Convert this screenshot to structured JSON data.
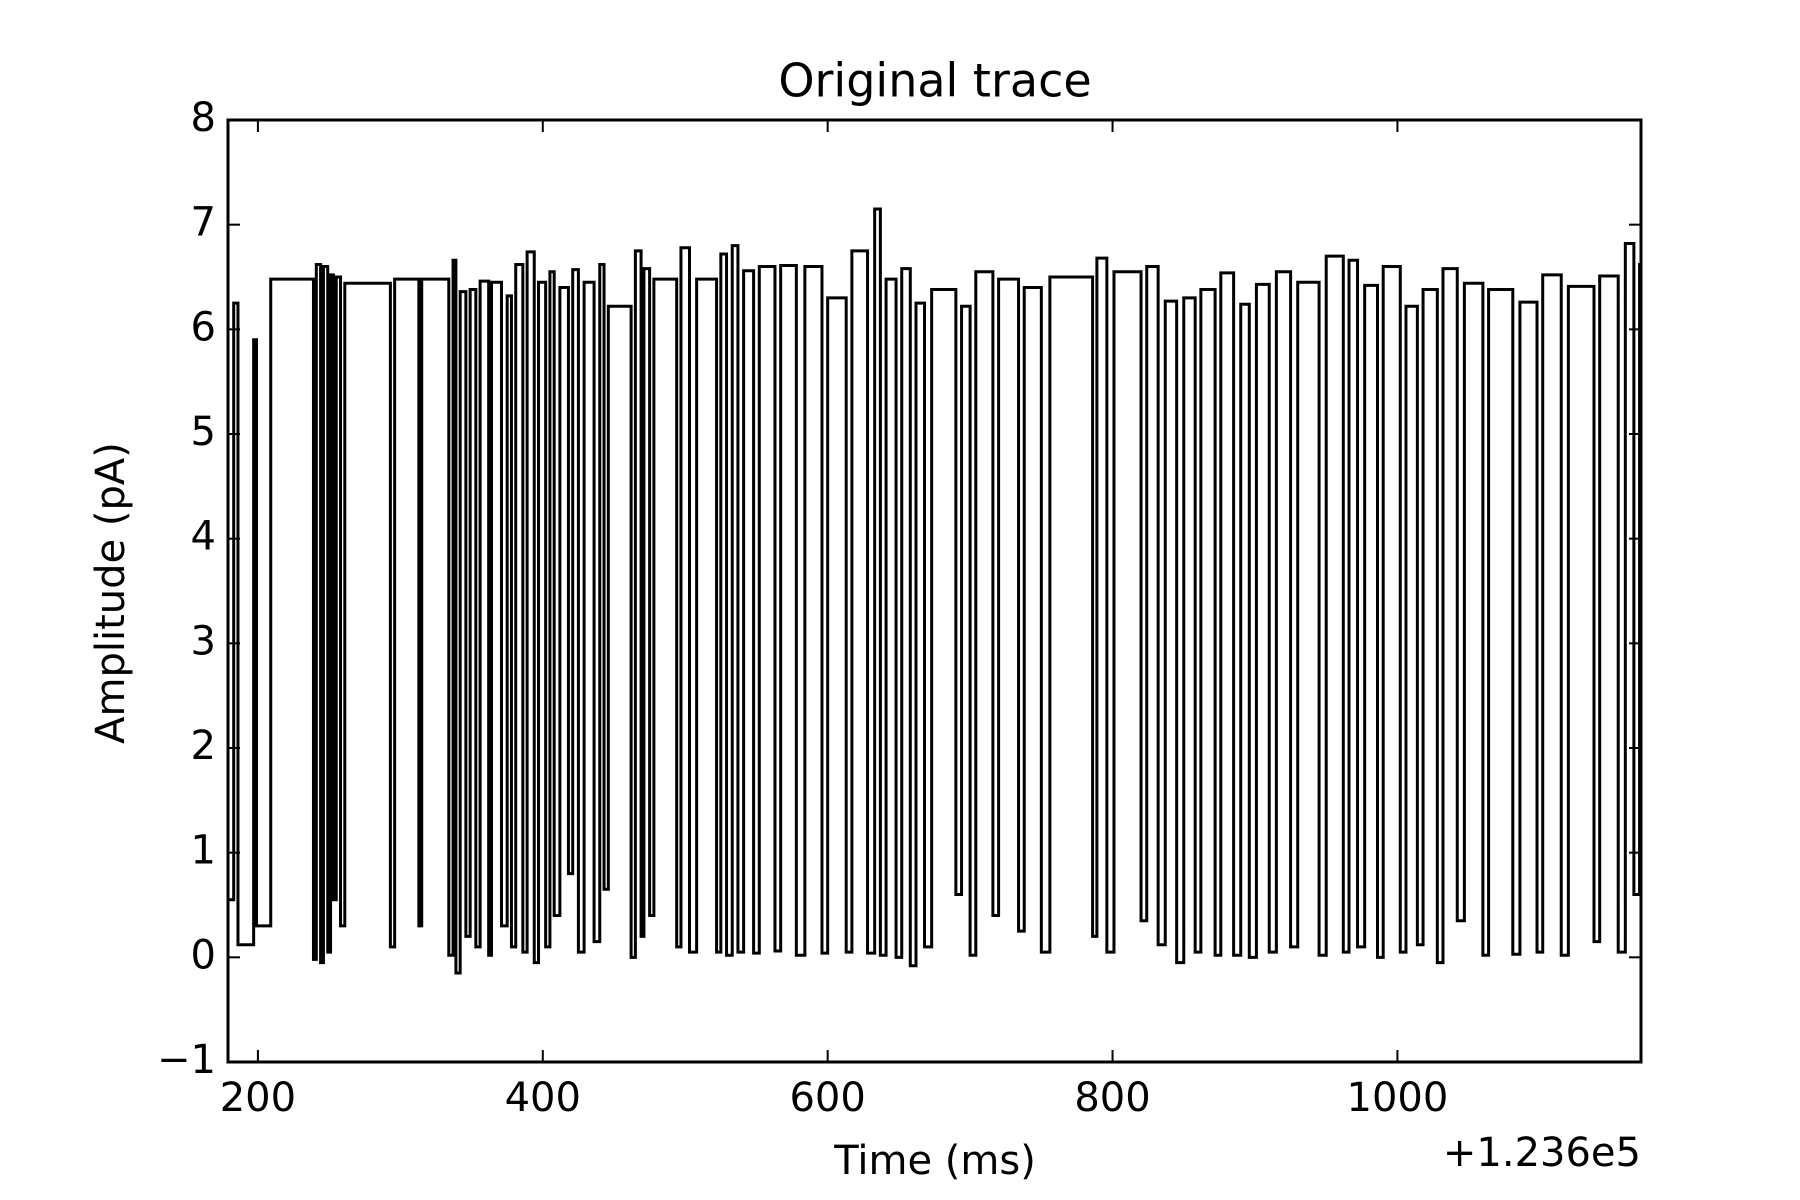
{
  "chart_data": {
    "type": "line",
    "title": "Original trace",
    "x_label": "Time (ms)",
    "y_label": "Amplitude (pA)",
    "x_offset_label": "+1.236e5",
    "drawstyle": "steps-post",
    "color": "#000000",
    "xlim": [
      179,
      1171
    ],
    "ylim": [
      -1,
      8
    ],
    "xticks": [
      200,
      400,
      600,
      800,
      1000
    ],
    "yticks": [
      {
        "value": -1,
        "label": "−1"
      },
      0,
      1,
      2,
      3,
      4,
      5,
      6,
      7,
      8
    ],
    "x": [
      179,
      183,
      186,
      197,
      199,
      209,
      239,
      241,
      244,
      246,
      249,
      251,
      253,
      255,
      258,
      261,
      293,
      296,
      313,
      315,
      334,
      337,
      339,
      342,
      346,
      349,
      353,
      356,
      362,
      364,
      371,
      375,
      378,
      381,
      386,
      389,
      394,
      397,
      402,
      405,
      408,
      412,
      418,
      421,
      425,
      429,
      436,
      440,
      443,
      446,
      462,
      465,
      469,
      471,
      475,
      478,
      494,
      497,
      503,
      508,
      522,
      525,
      529,
      533,
      537,
      541,
      548,
      552,
      563,
      567,
      578,
      584,
      596,
      600,
      613,
      617,
      628,
      633,
      637,
      641,
      648,
      652,
      658,
      662,
      668,
      673,
      690,
      694,
      700,
      704,
      716,
      720,
      734,
      738,
      750,
      756,
      786,
      789,
      796,
      801,
      820,
      824,
      832,
      837,
      845,
      850,
      858,
      862,
      872,
      876,
      885,
      890,
      896,
      901,
      910,
      915,
      925,
      930,
      945,
      950,
      962,
      966,
      972,
      977,
      986,
      990,
      1002,
      1006,
      1014,
      1018,
      1028,
      1032,
      1042,
      1047,
      1060,
      1064,
      1081,
      1086,
      1098,
      1102,
      1115,
      1120,
      1138,
      1142,
      1155,
      1160,
      1166,
      1170
    ],
    "values": [
      0.55,
      6.25,
      0.12,
      5.9,
      0.3,
      6.48,
      -0.02,
      6.62,
      -0.05,
      6.6,
      0.05,
      6.52,
      0.55,
      6.5,
      0.3,
      6.44,
      0.1,
      6.48,
      0.3,
      6.48,
      0.02,
      6.66,
      -0.15,
      6.36,
      0.2,
      6.38,
      0.1,
      6.46,
      0.02,
      6.45,
      0.3,
      6.32,
      0.1,
      6.62,
      0.05,
      6.74,
      -0.05,
      6.45,
      0.1,
      6.55,
      0.4,
      6.4,
      0.8,
      6.57,
      0.05,
      6.45,
      0.15,
      6.62,
      0.65,
      6.22,
      0.0,
      6.75,
      0.2,
      6.58,
      0.4,
      6.48,
      0.1,
      6.78,
      0.05,
      6.48,
      0.05,
      6.72,
      0.02,
      6.8,
      0.05,
      6.56,
      0.04,
      6.6,
      0.06,
      6.61,
      0.02,
      6.6,
      0.04,
      6.3,
      0.05,
      6.75,
      0.04,
      7.15,
      0.02,
      6.48,
      0.0,
      6.58,
      -0.08,
      6.25,
      0.1,
      6.38,
      0.6,
      6.22,
      0.02,
      6.55,
      0.4,
      6.48,
      0.25,
      6.4,
      0.05,
      6.5,
      0.2,
      6.68,
      0.05,
      6.55,
      0.35,
      6.6,
      0.12,
      6.27,
      -0.05,
      6.3,
      0.05,
      6.38,
      0.02,
      6.54,
      0.02,
      6.24,
      0.0,
      6.43,
      0.05,
      6.55,
      0.1,
      6.45,
      0.02,
      6.7,
      0.05,
      6.66,
      0.1,
      6.42,
      0.0,
      6.6,
      0.05,
      6.22,
      0.12,
      6.38,
      -0.05,
      6.58,
      0.35,
      6.44,
      0.02,
      6.38,
      0.03,
      6.26,
      0.05,
      6.52,
      0.02,
      6.41,
      0.15,
      6.51,
      0.05,
      6.82,
      0.6,
      6.62
    ]
  }
}
